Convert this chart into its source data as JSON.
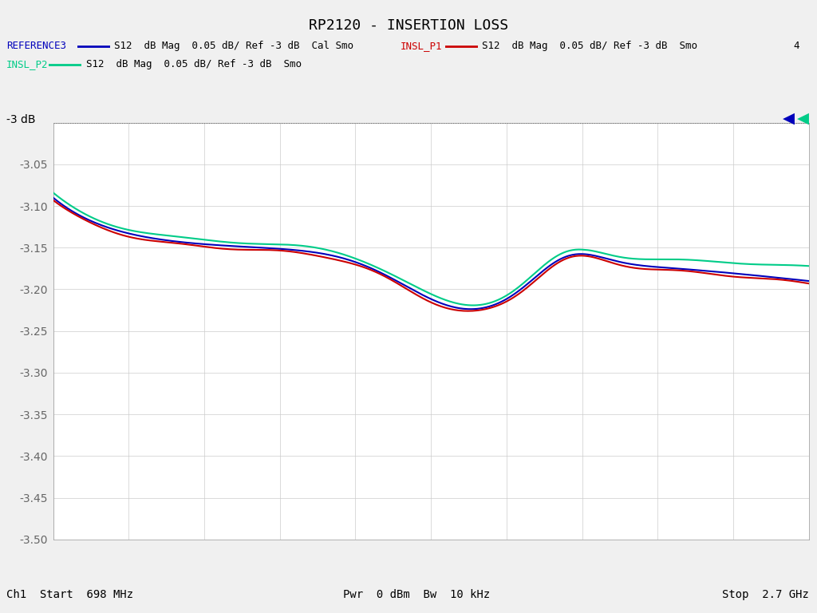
{
  "title": "RP2120 - INSERTION LOSS",
  "bg_color": "#f0f0f0",
  "plot_bg_color": "#ffffff",
  "xstart_ghz": 0.698,
  "xstop_ghz": 2.7,
  "ylim": [
    -3.5,
    -3.0
  ],
  "yticks": [
    -3.5,
    -3.45,
    -3.4,
    -3.35,
    -3.3,
    -3.25,
    -3.2,
    -3.15,
    -3.1,
    -3.05,
    -3.0
  ],
  "ref_line_y": -3.0,
  "ref_label": "-3 dB",
  "legend_row1": [
    {
      "label": "REFERENCE3",
      "desc": "S12  dB Mag  0.05 dB/ Ref -3 dB  Cal Smo",
      "color": "#0000cc"
    },
    {
      "label": "INSL_P1",
      "desc": "S12  dB Mag  0.05 dB/ Ref -3 dB  Smo",
      "color": "#cc0000"
    },
    {
      "label": "4",
      "desc": "",
      "color": "#000000"
    }
  ],
  "legend_row2": [
    {
      "label": "INSL_P2",
      "desc": "S12  dB Mag  0.05 dB/ Ref -3 dB  Smo",
      "color": "#00cc88"
    }
  ],
  "bottom_left": "Ch1  Start  698 MHz",
  "bottom_center": "Pwr  0 dBm  Bw  10 kHz",
  "bottom_right": "Stop  2.7 GHz",
  "num_xgrid": 10,
  "num_ygrid": 10,
  "trace_blue_color": "#0000bb",
  "trace_red_color": "#cc0000",
  "trace_green_color": "#00cc88",
  "marker_blue_color": "#0000bb",
  "marker_red_color": "#cc0000",
  "marker_green_color": "#00cc88"
}
